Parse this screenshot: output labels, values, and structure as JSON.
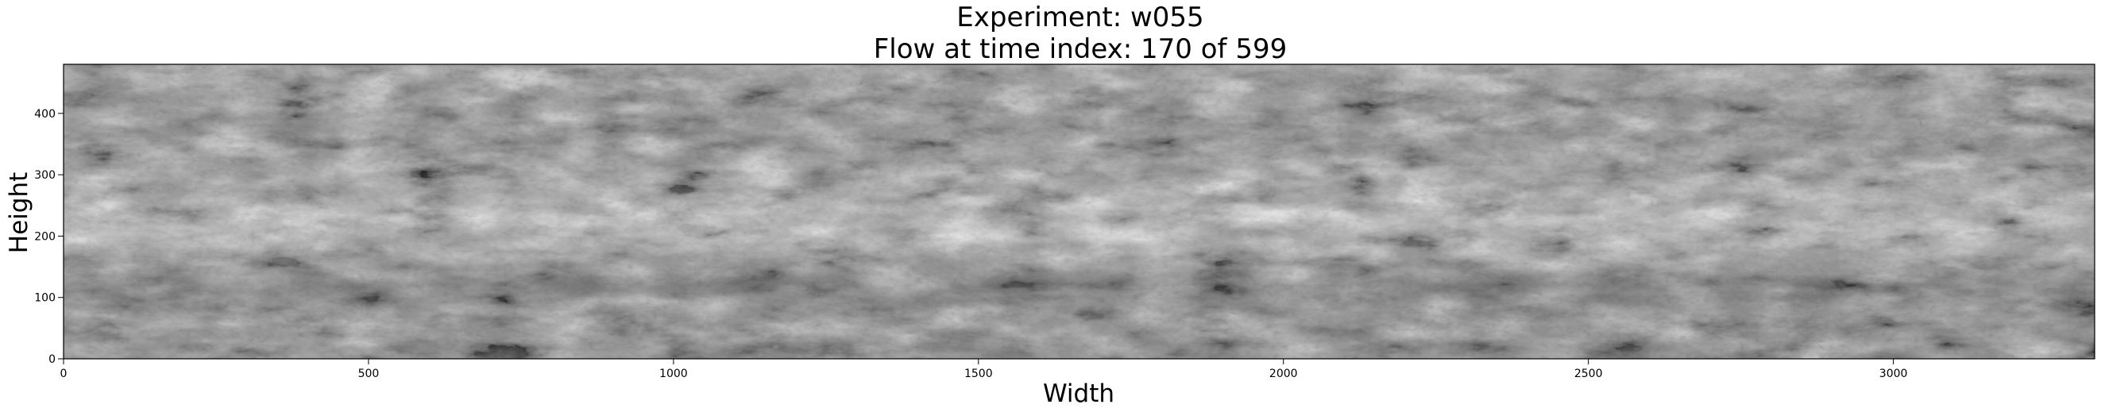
{
  "title": {
    "line1": "Experiment: w055",
    "line2": "Flow at time index: 170 of 599"
  },
  "axes": {
    "xlabel": "Width",
    "ylabel": "Height",
    "xlim": [
      0,
      3330
    ],
    "ylim": [
      0,
      480
    ],
    "xticks": [
      "0",
      "500",
      "1000",
      "1500",
      "2000",
      "2500",
      "3000"
    ],
    "yticks": [
      "0",
      "100",
      "200",
      "300",
      "400"
    ],
    "xtick_values": [
      0,
      500,
      1000,
      1500,
      2000,
      2500,
      3000
    ],
    "ytick_values": [
      0,
      100,
      200,
      300,
      400
    ]
  },
  "image": {
    "colormap": "grayscale",
    "content": "flow-texture"
  }
}
